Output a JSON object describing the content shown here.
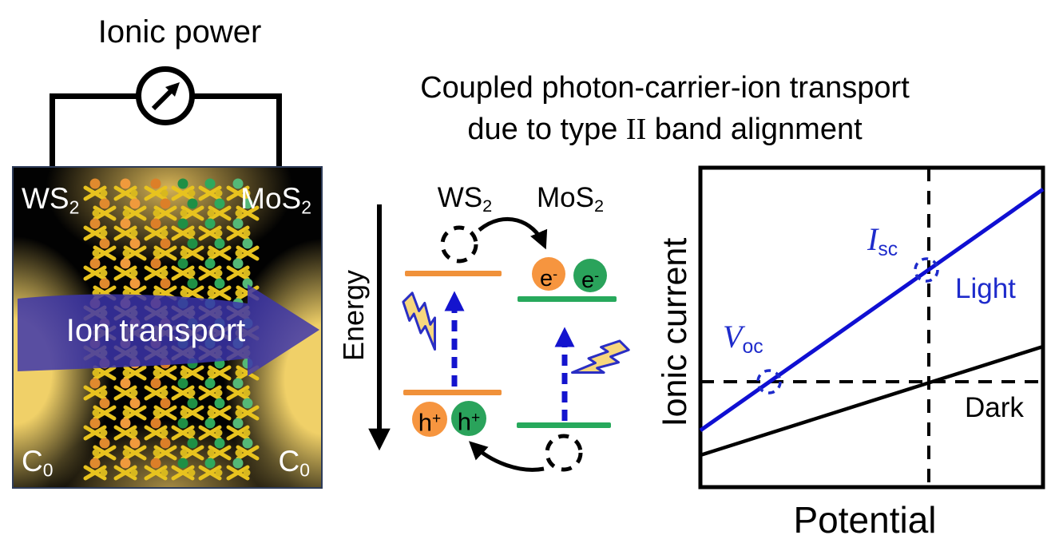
{
  "left_panel": {
    "power_label": "Ionic power",
    "material_left": {
      "base": "WS",
      "sub": "2"
    },
    "material_right": {
      "base": "MoS",
      "sub": "2"
    },
    "ion_arrow_label": "Ion transport",
    "concentration_left": {
      "base": "C",
      "sub": "0"
    },
    "concentration_right": {
      "base": "C",
      "sub": "0"
    }
  },
  "middle_panel": {
    "title_line1": "Coupled photon-carrier-ion transport",
    "title_line2_pre": "due to type ",
    "title_line2_roman": "II",
    "title_line2_post": " band alignment",
    "energy_axis_label": "Energy",
    "material_left": {
      "base": "WS",
      "sub": "2"
    },
    "material_right": {
      "base": "MoS",
      "sub": "2"
    },
    "electron": {
      "base": "e",
      "sup": "-"
    },
    "hole": {
      "base": "h",
      "sup": "+"
    }
  },
  "right_panel": {
    "ylabel": "Ionic current",
    "xlabel": "Potential",
    "light_label": "Light",
    "dark_label": "Dark",
    "isc": {
      "base": "I",
      "sub": "sc"
    },
    "voc": {
      "base": "V",
      "sub": "oc"
    }
  },
  "colors": {
    "orange": "#F6953F",
    "green": "#2AA35B",
    "band_orange": "#F0913A",
    "band_green": "#27A95C",
    "blue": "#1414CE",
    "blue_label": "#1E2BCB",
    "ion_arrow_indigo": "#3C34AB",
    "bolt_yellow": "#F7D77E",
    "bolt_outline": "#2A2EC4",
    "glow_yellow": "#EFCF68",
    "stick_yellow": "#E8C31E"
  }
}
